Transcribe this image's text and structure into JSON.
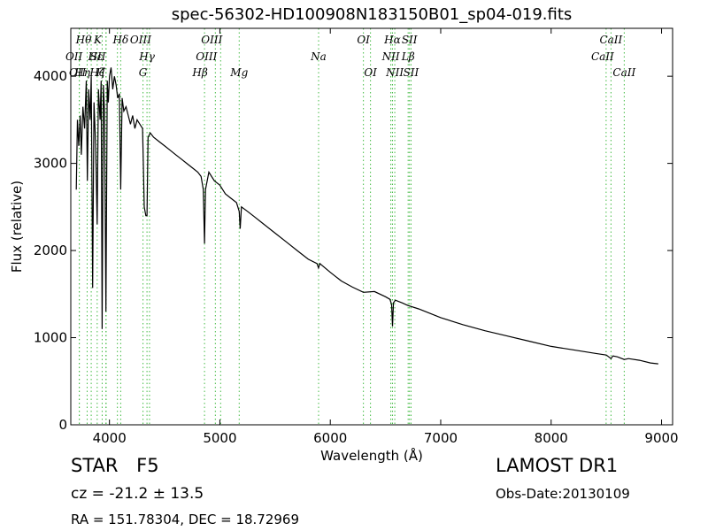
{
  "chart_data": {
    "type": "line",
    "title": "spec-56302-HD100908N183150B01_sp04-019.fits",
    "xlabel": "Wavelength (Å)",
    "ylabel": "Flux (relative)",
    "xlim": [
      3650,
      9100
    ],
    "ylim": [
      0,
      4550
    ],
    "xticks": [
      4000,
      5000,
      6000,
      7000,
      8000,
      9000
    ],
    "yticks": [
      0,
      1000,
      2000,
      3000,
      4000
    ],
    "grid": false,
    "line_color": "#000000",
    "marker_color": "#44bb44",
    "series": [
      {
        "x": [
          3700,
          3710,
          3722,
          3735,
          3745,
          3760,
          3775,
          3790,
          3800,
          3812,
          3825,
          3835,
          3848,
          3860,
          3875,
          3889,
          3900,
          3915,
          3925,
          3934,
          3945,
          3955,
          3968,
          3980,
          3990,
          4000,
          4015,
          4030,
          4045,
          4060,
          4075,
          4090,
          4102,
          4115,
          4130,
          4150,
          4170,
          4190,
          4210,
          4230,
          4250,
          4275,
          4300,
          4315,
          4330,
          4340,
          4350,
          4370,
          4400,
          4450,
          4500,
          4550,
          4600,
          4650,
          4700,
          4750,
          4800,
          4830,
          4850,
          4861,
          4870,
          4900,
          4950,
          5000,
          5050,
          5100,
          5150,
          5175,
          5184,
          5195,
          5250,
          5300,
          5400,
          5500,
          5600,
          5700,
          5800,
          5880,
          5893,
          5905,
          6000,
          6100,
          6200,
          6300,
          6400,
          6500,
          6540,
          6555,
          6563,
          6572,
          6590,
          6650,
          6700,
          6800,
          7000,
          7200,
          7400,
          7600,
          7800,
          8000,
          8200,
          8400,
          8500,
          8542,
          8560,
          8600,
          8662,
          8700,
          8800,
          8900,
          8970
        ],
        "y": [
          2700,
          3500,
          3200,
          3550,
          3100,
          3650,
          3400,
          3950,
          2800,
          3850,
          3500,
          4000,
          1570,
          3700,
          3200,
          2300,
          3850,
          3500,
          3950,
          1100,
          3900,
          3600,
          1300,
          3950,
          3700,
          4000,
          4100,
          3850,
          4000,
          3900,
          3750,
          3800,
          2700,
          3750,
          3600,
          3650,
          3550,
          3450,
          3550,
          3400,
          3500,
          3450,
          3400,
          2500,
          2400,
          2400,
          3300,
          3350,
          3300,
          3250,
          3200,
          3150,
          3100,
          3050,
          3000,
          2950,
          2900,
          2850,
          2700,
          2080,
          2700,
          2900,
          2800,
          2750,
          2650,
          2600,
          2550,
          2450,
          2250,
          2500,
          2450,
          2400,
          2300,
          2200,
          2100,
          2000,
          1900,
          1850,
          1800,
          1850,
          1750,
          1650,
          1580,
          1520,
          1530,
          1470,
          1440,
          1380,
          1130,
          1400,
          1430,
          1400,
          1370,
          1330,
          1230,
          1150,
          1080,
          1020,
          960,
          900,
          860,
          820,
          800,
          760,
          790,
          780,
          750,
          760,
          740,
          710,
          700
        ]
      }
    ],
    "line_markers": [
      {
        "name": "OII",
        "wavelength": 3727,
        "row": 2,
        "dx": -2
      },
      {
        "name": "Hθ",
        "wavelength": 3798,
        "row": 0,
        "dx": -4
      },
      {
        "name": "OII",
        "wavelength": 3727,
        "row": 1,
        "dx": -6
      },
      {
        "name": "Hη",
        "wavelength": 3835,
        "row": 2,
        "dx": -10
      },
      {
        "name": "Hζ",
        "wavelength": 3889,
        "row": 2,
        "dx": 0
      },
      {
        "name": "K",
        "wavelength": 3934,
        "row": 0,
        "dx": -5
      },
      {
        "name": "H",
        "wavelength": 3968,
        "row": 2,
        "dx": -6
      },
      {
        "name": "Hε",
        "wavelength": 3970,
        "row": 1,
        "dx": -12
      },
      {
        "name": "SII",
        "wavelength": 4072,
        "row": 1,
        "dx": -22
      },
      {
        "name": "Hδ",
        "wavelength": 4102,
        "row": 0,
        "dx": 0
      },
      {
        "name": "Hγ",
        "wavelength": 4340,
        "row": 1,
        "dx": 0
      },
      {
        "name": "G",
        "wavelength": 4304,
        "row": 2,
        "dx": 0
      },
      {
        "name": "OIII",
        "wavelength": 4363,
        "row": 0,
        "dx": -10
      },
      {
        "name": "Hβ",
        "wavelength": 4861,
        "row": 2,
        "dx": -5
      },
      {
        "name": "OIII",
        "wavelength": 4959,
        "row": 1,
        "dx": -10
      },
      {
        "name": "OIII",
        "wavelength": 5007,
        "row": 0,
        "dx": -10
      },
      {
        "name": "Mg",
        "wavelength": 5175,
        "row": 2,
        "dx": 0
      },
      {
        "name": "Na",
        "wavelength": 5894,
        "row": 1,
        "dx": 0
      },
      {
        "name": "OI",
        "wavelength": 6300,
        "row": 0,
        "dx": 0
      },
      {
        "name": "OI",
        "wavelength": 6364,
        "row": 2,
        "dx": 0
      },
      {
        "name": "NII",
        "wavelength": 6548,
        "row": 1,
        "dx": 0
      },
      {
        "name": "Hα",
        "wavelength": 6563,
        "row": 0,
        "dx": 0
      },
      {
        "name": "NII",
        "wavelength": 6584,
        "row": 2,
        "dx": 0
      },
      {
        "name": "SII",
        "wavelength": 6717,
        "row": 0,
        "dx": 0
      },
      {
        "name": "Lβ",
        "wavelength": 6705,
        "row": 1,
        "dx": 0
      },
      {
        "name": "SII",
        "wavelength": 6731,
        "row": 2,
        "dx": 0
      },
      {
        "name": "CaII",
        "wavelength": 8498,
        "row": 1,
        "dx": -4
      },
      {
        "name": "CaII",
        "wavelength": 8542,
        "row": 0,
        "dx": 0
      },
      {
        "name": "CaII",
        "wavelength": 8662,
        "row": 2,
        "dx": 0
      }
    ]
  },
  "info": {
    "object_class": "STAR",
    "subclass": "F5",
    "redshift": "cz = -21.2 ± 13.5",
    "coordinates": "RA = 151.78304, DEC = 18.72969",
    "survey": "LAMOST DR1",
    "obs_date": "Obs-Date:20130109"
  }
}
